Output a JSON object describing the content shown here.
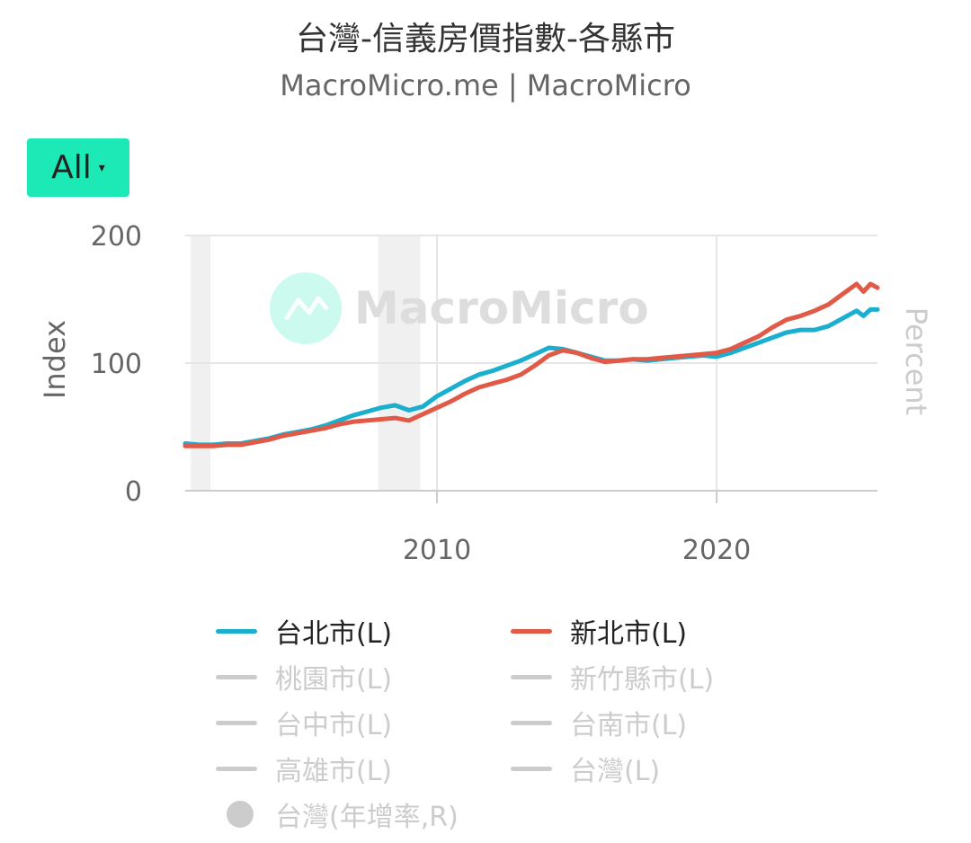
{
  "header": {
    "title": "台灣-信義房價指數-各縣市",
    "subtitle": "MacroMicro.me | MacroMicro"
  },
  "range_button": {
    "label": "All",
    "caret": "▾"
  },
  "watermark": {
    "text": "MacroMicro"
  },
  "colors": {
    "taipei": "#1aaecf",
    "new_taipei": "#e05a47",
    "inactive": "#cccccc",
    "grid": "#e6e6e6",
    "recession": "#f0f0f0",
    "axis_text": "#666666",
    "accent": "#1de9b6"
  },
  "legend": [
    {
      "label": "台北市(L)",
      "active": true,
      "color": "#1aaecf",
      "marker": "line"
    },
    {
      "label": "新北市(L)",
      "active": true,
      "color": "#e05a47",
      "marker": "line"
    },
    {
      "label": "桃園市(L)",
      "active": false,
      "color": "#cccccc",
      "marker": "line"
    },
    {
      "label": "新竹縣市(L)",
      "active": false,
      "color": "#cccccc",
      "marker": "line"
    },
    {
      "label": "台中市(L)",
      "active": false,
      "color": "#cccccc",
      "marker": "line"
    },
    {
      "label": "台南市(L)",
      "active": false,
      "color": "#cccccc",
      "marker": "line"
    },
    {
      "label": "高雄市(L)",
      "active": false,
      "color": "#cccccc",
      "marker": "line"
    },
    {
      "label": "台灣(L)",
      "active": false,
      "color": "#cccccc",
      "marker": "line"
    },
    {
      "label": "台灣(年增率,R)",
      "active": false,
      "color": "#cccccc",
      "marker": "dot"
    }
  ],
  "chart_data": {
    "type": "line",
    "ylabel_left": "Index",
    "ylabel_right": "Percent",
    "yticks": [
      0,
      100,
      200
    ],
    "ylim": [
      0,
      200
    ],
    "xlim": [
      2001.0,
      2025.75
    ],
    "xticks": [
      2010,
      2020
    ],
    "recession_bands": [
      [
        2001.2,
        2001.9
      ],
      [
        2007.9,
        2009.4
      ]
    ],
    "series": [
      {
        "name": "台北市(L)",
        "x": [
          2001.0,
          2001.5,
          2002.0,
          2002.5,
          2003.0,
          2003.5,
          2004.0,
          2004.5,
          2005.0,
          2005.5,
          2006.0,
          2006.5,
          2007.0,
          2007.5,
          2008.0,
          2008.5,
          2009.0,
          2009.5,
          2010.0,
          2010.5,
          2011.0,
          2011.5,
          2012.0,
          2012.5,
          2013.0,
          2013.5,
          2014.0,
          2014.5,
          2015.0,
          2015.5,
          2016.0,
          2016.5,
          2017.0,
          2017.5,
          2018.0,
          2018.5,
          2019.0,
          2019.5,
          2020.0,
          2020.5,
          2021.0,
          2021.5,
          2022.0,
          2022.5,
          2023.0,
          2023.5,
          2024.0,
          2024.5,
          2025.0,
          2025.25,
          2025.5,
          2025.75
        ],
        "values": [
          37,
          36,
          36,
          37,
          37,
          39,
          41,
          44,
          46,
          48,
          51,
          55,
          59,
          62,
          65,
          67,
          63,
          66,
          74,
          80,
          86,
          91,
          94,
          98,
          102,
          107,
          112,
          111,
          108,
          105,
          102,
          102,
          103,
          102,
          103,
          104,
          105,
          106,
          105,
          108,
          112,
          116,
          120,
          124,
          126,
          126,
          129,
          135,
          141,
          137,
          142,
          142
        ]
      },
      {
        "name": "新北市(L)",
        "x": [
          2001.0,
          2001.5,
          2002.0,
          2002.5,
          2003.0,
          2003.5,
          2004.0,
          2004.5,
          2005.0,
          2005.5,
          2006.0,
          2006.5,
          2007.0,
          2007.5,
          2008.0,
          2008.5,
          2009.0,
          2009.5,
          2010.0,
          2010.5,
          2011.0,
          2011.5,
          2012.0,
          2012.5,
          2013.0,
          2013.5,
          2014.0,
          2014.5,
          2015.0,
          2015.5,
          2016.0,
          2016.5,
          2017.0,
          2017.5,
          2018.0,
          2018.5,
          2019.0,
          2019.5,
          2020.0,
          2020.5,
          2021.0,
          2021.5,
          2022.0,
          2022.5,
          2023.0,
          2023.5,
          2024.0,
          2024.5,
          2025.0,
          2025.25,
          2025.5,
          2025.75
        ],
        "values": [
          35,
          35,
          35,
          36,
          36,
          38,
          40,
          43,
          45,
          47,
          49,
          52,
          54,
          55,
          56,
          57,
          55,
          60,
          65,
          70,
          76,
          81,
          84,
          87,
          91,
          98,
          106,
          110,
          108,
          104,
          101,
          102,
          103,
          103,
          104,
          105,
          106,
          107,
          108,
          111,
          116,
          121,
          128,
          134,
          137,
          141,
          146,
          154,
          162,
          156,
          162,
          159
        ]
      }
    ]
  }
}
